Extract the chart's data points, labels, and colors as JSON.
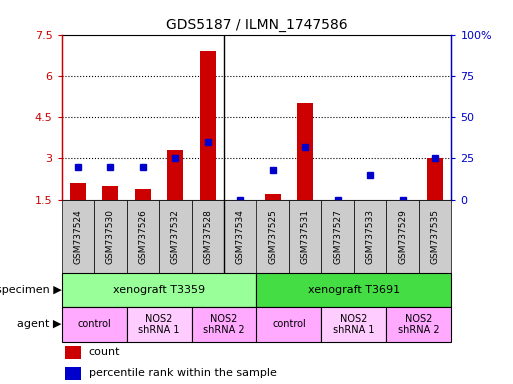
{
  "title": "GDS5187 / ILMN_1747586",
  "samples": [
    "GSM737524",
    "GSM737530",
    "GSM737526",
    "GSM737532",
    "GSM737528",
    "GSM737534",
    "GSM737525",
    "GSM737531",
    "GSM737527",
    "GSM737533",
    "GSM737529",
    "GSM737535"
  ],
  "count_values": [
    2.1,
    2.0,
    1.9,
    3.3,
    6.9,
    1.5,
    1.7,
    5.0,
    1.5,
    1.5,
    1.5,
    3.0
  ],
  "percentile_values": [
    20,
    20,
    20,
    25,
    35,
    0,
    18,
    32,
    0,
    15,
    0,
    25
  ],
  "ylim_left": [
    1.5,
    7.5
  ],
  "ylim_right": [
    0,
    100
  ],
  "yticks_left": [
    1.5,
    3.0,
    4.5,
    6.0,
    7.5
  ],
  "yticks_right": [
    0,
    25,
    50,
    75,
    100
  ],
  "ytick_labels_left": [
    "1.5",
    "3",
    "4.5",
    "6",
    "7.5"
  ],
  "ytick_labels_right": [
    "0",
    "25",
    "50",
    "75",
    "100%"
  ],
  "bar_color": "#cc0000",
  "dot_color": "#0000cc",
  "specimen_groups": [
    {
      "label": "xenograft T3359",
      "start": 0,
      "end": 5,
      "color": "#99ff99"
    },
    {
      "label": "xenograft T3691",
      "start": 6,
      "end": 11,
      "color": "#44dd44"
    }
  ],
  "agent_groups": [
    {
      "label": "control",
      "start": 0,
      "end": 1,
      "color": "#ffaaff"
    },
    {
      "label": "NOS2\nshRNA 1",
      "start": 2,
      "end": 3,
      "color": "#ffccff"
    },
    {
      "label": "NOS2\nshRNA 2",
      "start": 4,
      "end": 5,
      "color": "#ffaaff"
    },
    {
      "label": "control",
      "start": 6,
      "end": 7,
      "color": "#ffaaff"
    },
    {
      "label": "NOS2\nshRNA 1",
      "start": 8,
      "end": 9,
      "color": "#ffccff"
    },
    {
      "label": "NOS2\nshRNA 2",
      "start": 10,
      "end": 11,
      "color": "#ffaaff"
    }
  ],
  "tick_bg_color": "#cccccc",
  "separator_col": 5,
  "bar_width": 0.5,
  "legend_count_color": "#cc0000",
  "legend_dot_color": "#0000cc"
}
